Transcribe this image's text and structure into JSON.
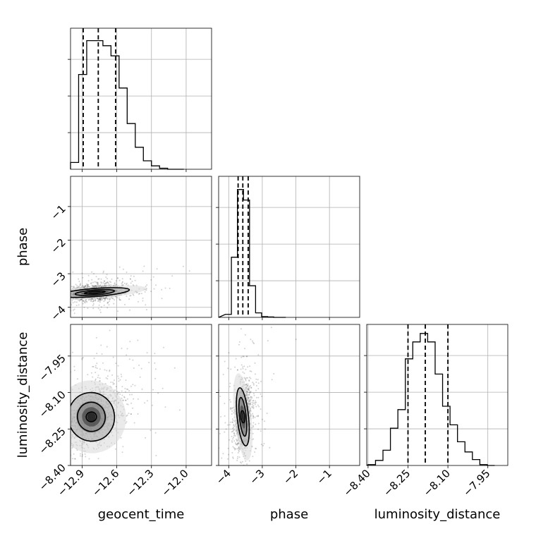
{
  "chart_data": {
    "type": "corner",
    "parameters": [
      "geocent_time",
      "phase",
      "luminosity_distance"
    ],
    "quantile_lines": "dashed",
    "grid": true,
    "panels": [
      {
        "kind": "histogram",
        "parameter": "geocent_time",
        "xlim": [
          -13.0,
          -11.78
        ],
        "bin_edges": [
          -13.0,
          -12.93,
          -12.86,
          -12.79,
          -12.72,
          -12.65,
          -12.58,
          -12.51,
          -12.44,
          -12.37,
          -12.3,
          -12.23,
          -12.16,
          -12.09,
          -12.02
        ],
        "counts": [
          0.04,
          0.56,
          0.76,
          0.76,
          0.73,
          0.67,
          0.48,
          0.27,
          0.13,
          0.05,
          0.02,
          0.006,
          0.0,
          0.0
        ],
        "ylim": [
          0,
          0.8
        ],
        "quantiles": [
          -12.89,
          -12.76,
          -12.61
        ],
        "xticks": [
          -12.9,
          -12.6,
          -12.3,
          -12.0
        ],
        "xticklabels": [
          "",
          "",
          "",
          ""
        ]
      },
      {
        "kind": "histogram",
        "parameter": "phase",
        "xlim": [
          -4.3,
          -0.1
        ],
        "bin_edges": [
          -4.1,
          -3.92,
          -3.74,
          -3.56,
          -3.38,
          -3.2,
          -3.02,
          -2.84,
          -2.66,
          -2.48,
          -2.3
        ],
        "counts": [
          0.02,
          0.4,
          0.85,
          0.78,
          0.21,
          0.03,
          0.005,
          0.003,
          0.0,
          0.0
        ],
        "ylim": [
          0,
          0.9
        ],
        "quantiles": [
          -3.72,
          -3.58,
          -3.42
        ],
        "xticks": [
          -4,
          -3,
          -2,
          -1
        ],
        "xticklabels": [
          "",
          "",
          "",
          ""
        ]
      },
      {
        "kind": "histogram",
        "parameter": "luminosity_distance",
        "xlim": [
          -8.405,
          -7.875
        ],
        "bin_edges": [
          -8.4,
          -8.372,
          -8.344,
          -8.316,
          -8.288,
          -8.26,
          -8.232,
          -8.204,
          -8.176,
          -8.148,
          -8.12,
          -8.092,
          -8.064,
          -8.036,
          -8.008,
          -7.98,
          -7.952,
          -7.924
        ],
        "counts": [
          0.005,
          0.03,
          0.09,
          0.22,
          0.33,
          0.63,
          0.73,
          0.78,
          0.73,
          0.54,
          0.35,
          0.24,
          0.14,
          0.08,
          0.035,
          0.005,
          0.0
        ],
        "ylim": [
          0,
          0.8
        ],
        "quantiles": [
          -8.25,
          -8.185,
          -8.1
        ],
        "xticks": [
          -8.4,
          -8.25,
          -8.1,
          -7.95
        ],
        "xticklabels": [
          "−8.40",
          "−8.25",
          "−8.10",
          "−7.95"
        ],
        "xlabel": "luminosity_distance"
      },
      {
        "kind": "density",
        "x_parameter": "geocent_time",
        "y_parameter": "phase",
        "xlim": [
          -13.0,
          -11.78
        ],
        "ylim": [
          -4.3,
          -0.1
        ],
        "peak": [
          -12.79,
          -3.56
        ],
        "spread": [
          0.12,
          0.12
        ],
        "correlation": 0.15,
        "contours": [
          [
            0.09,
            0.035
          ],
          [
            0.17,
            0.075
          ],
          [
            0.3,
            0.12
          ]
        ],
        "yticks": [
          -4,
          -3,
          -2,
          -1
        ],
        "yticklabels": [
          "−4",
          "−3",
          "−2",
          "−1"
        ],
        "ylabel": "phase",
        "xticks": [
          -12.9,
          -12.6,
          -12.3,
          -12.0
        ],
        "xticklabels": [
          "",
          "",
          "",
          ""
        ]
      },
      {
        "kind": "density",
        "x_parameter": "geocent_time",
        "y_parameter": "luminosity_distance",
        "xlim": [
          -13.0,
          -11.78
        ],
        "ylim": [
          -8.4,
          -7.82
        ],
        "peak": [
          -12.82,
          -8.2
        ],
        "spread": [
          0.12,
          0.06
        ],
        "correlation": 0.35,
        "contours": [
          [
            0.045,
            0.02
          ],
          [
            0.12,
            0.06
          ],
          [
            0.2,
            0.1
          ]
        ],
        "yticks": [
          -8.4,
          -8.25,
          -8.1,
          -7.95
        ],
        "yticklabels": [
          "−8.40",
          "−8.25",
          "−8.10",
          "−7.95"
        ],
        "ylabel": "luminosity_distance",
        "xticks": [
          -12.9,
          -12.6,
          -12.3,
          -12.0
        ],
        "xticklabels": [
          "−12.9",
          "−12.6",
          "−12.3",
          "−12.0"
        ],
        "xlabel": "geocent_time"
      },
      {
        "kind": "density",
        "x_parameter": "phase",
        "y_parameter": "luminosity_distance",
        "xlim": [
          -4.3,
          -0.1
        ],
        "ylim": [
          -8.4,
          -7.82
        ],
        "peak": [
          -3.58,
          -8.2
        ],
        "spread": [
          0.12,
          0.06
        ],
        "correlation": 0.2,
        "contours": [
          [
            0.06,
            0.025
          ],
          [
            0.1,
            0.08
          ],
          [
            0.17,
            0.12
          ]
        ],
        "yticks": [
          -8.4,
          -8.25,
          -8.1,
          -7.95
        ],
        "yticklabels": [
          "",
          "",
          "",
          ""
        ],
        "xticks": [
          -4,
          -3,
          -2,
          -1
        ],
        "xticklabels": [
          "−4",
          "−3",
          "−2",
          "−1"
        ],
        "xlabel": "phase"
      }
    ]
  }
}
